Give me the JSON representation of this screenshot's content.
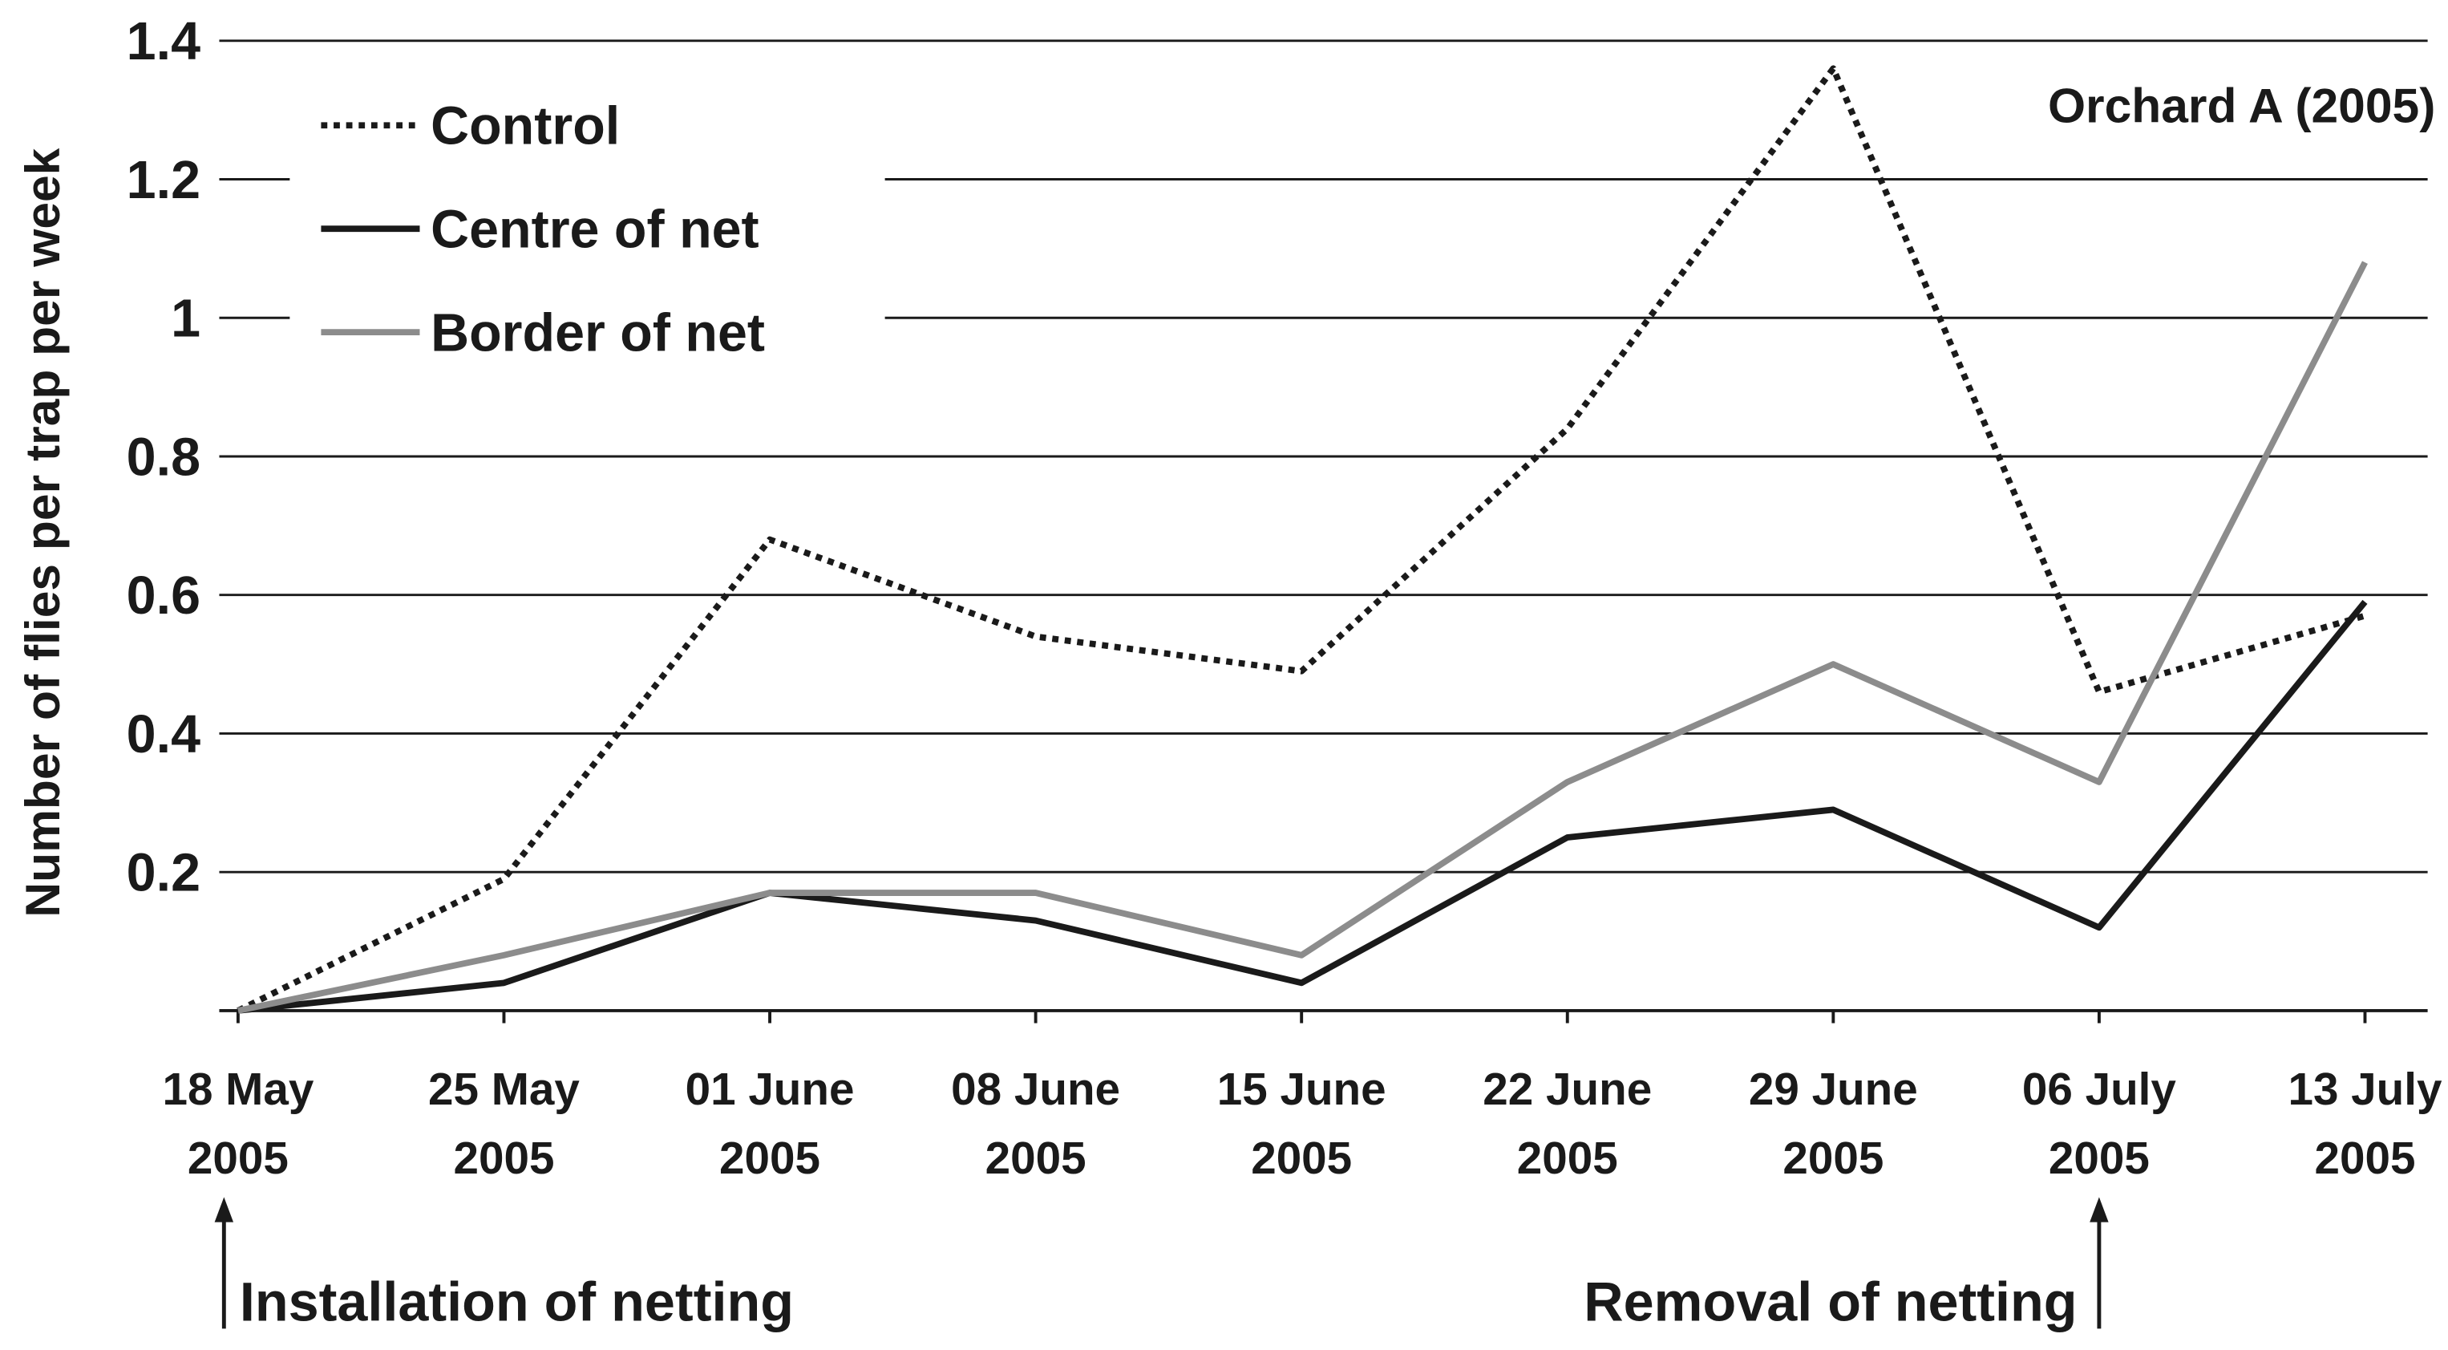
{
  "chart_data": {
    "type": "line",
    "title": "Orchard A (2005)",
    "y_label": "Number of flies per trap per week",
    "categories": [
      "18 May 2005",
      "25 May 2005",
      "01 June 2005",
      "08 June 2005",
      "15 June 2005",
      "22 June 2005",
      "29 June 2005",
      "06 July 2005",
      "13 July 2005"
    ],
    "series": [
      {
        "name": "Control",
        "color": "#1a1a1a",
        "style": "dotted",
        "values": [
          0,
          0.19,
          0.68,
          0.54,
          0.49,
          0.84,
          1.36,
          0.46,
          0.57
        ]
      },
      {
        "name": "Centre of net",
        "color": "#1a1a1a",
        "style": "solid",
        "values": [
          0,
          0.04,
          0.17,
          0.13,
          0.04,
          0.25,
          0.29,
          0.12,
          0.59
        ]
      },
      {
        "name": "Border of net",
        "color": "#8c8c8c",
        "style": "solid",
        "values": [
          0,
          0.08,
          0.17,
          0.17,
          0.08,
          0.33,
          0.5,
          0.33,
          1.08
        ]
      }
    ],
    "ylim": [
      0,
      1.4
    ],
    "yticks": [
      0.2,
      0.4,
      0.6,
      0.8,
      1,
      1.2,
      1.4
    ],
    "grid": true,
    "legend": "upper-left",
    "annotations": [
      {
        "text": "Installation of netting",
        "category": 0
      },
      {
        "text": "Removal of netting",
        "category": 7
      }
    ]
  }
}
